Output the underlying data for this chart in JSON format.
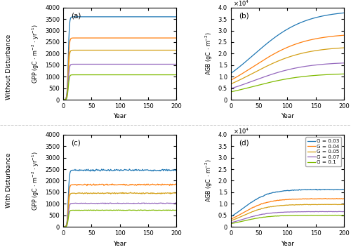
{
  "G_values": [
    0.03,
    0.04,
    0.05,
    0.07,
    0.1
  ],
  "colors": [
    "#1f77b4",
    "#ff7f0e",
    "#d4a017",
    "#9467bd",
    "#7fba00"
  ],
  "years": 201,
  "gpp_max_no_dist": [
    3600,
    2680,
    2150,
    1540,
    1080
  ],
  "agb_max_no_dist": [
    38800.0,
    28800.0,
    23200.0,
    16400.0,
    11500.0
  ],
  "agb_rate_no_dist": [
    0.022,
    0.022,
    0.022,
    0.022,
    0.022
  ],
  "gpp_max_with_dist": [
    2460,
    1830,
    1460,
    1020,
    720
  ],
  "agb_max_with_dist": [
    16200.0,
    12200.0,
    9700.0,
    6600.0,
    5000.0
  ],
  "panel_labels": [
    "(a)",
    "(b)",
    "(c)",
    "(d)"
  ],
  "xlabel": "Year",
  "row_label_top": "Without Disturbance",
  "row_label_bot": "With Disturbance",
  "legend_labels": [
    "G = 0.03",
    "G = 0.04",
    "G = 0.05",
    "G = 0.07",
    "G = 0.1"
  ],
  "ylim_gpp": [
    0,
    4000
  ],
  "ylim_agb": [
    0,
    40000.0
  ],
  "xticks": [
    0,
    50,
    100,
    150,
    200
  ]
}
